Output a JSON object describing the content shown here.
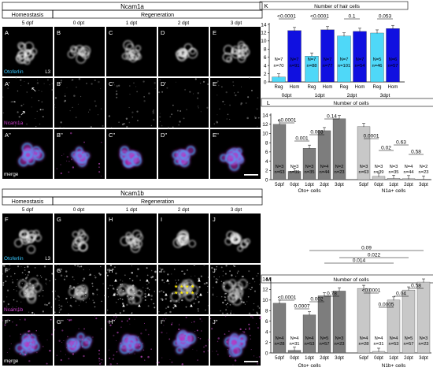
{
  "panel_group_1": {
    "gene": "Ncam1a",
    "homeostasis_label": "Homeostasis",
    "regeneration_label": "Regeneration",
    "column_labels": [
      "5 dpf",
      "0 dpt",
      "1 dpt",
      "2 dpt",
      "3 dpt"
    ],
    "row1_letters": [
      "A",
      "B",
      "C",
      "D",
      "E"
    ],
    "row2_letters": [
      "A'",
      "B'",
      "C'",
      "D'",
      "E'"
    ],
    "row3_letters": [
      "A''",
      "B''",
      "C''",
      "D''",
      "E''"
    ],
    "stain_label_1": "Otoferlin",
    "stain_label_2": "Ncam1a",
    "merge_label": "merge",
    "corner_label": "L3"
  },
  "panel_group_2": {
    "gene": "Ncam1b",
    "homeostasis_label": "Homeostasis",
    "regeneration_label": "Regeneration",
    "column_labels": [
      "5 dpf",
      "0 dpt",
      "1 dpt",
      "2 dpt",
      "3 dpt"
    ],
    "row1_letters": [
      "F",
      "G",
      "H",
      "I",
      "J"
    ],
    "row2_letters": [
      "F'",
      "G'",
      "H'",
      "I'",
      "J'"
    ],
    "row3_letters": [
      "F''",
      "G''",
      "H''",
      "I''",
      "J''"
    ],
    "stain_label_1": "Otoferlin",
    "stain_label_2": "Ncam1b",
    "merge_label": "merge",
    "corner_label": "L3"
  },
  "colors": {
    "light_blue": "#4fd8f8",
    "dark_blue": "#1010e0",
    "dark_gray": "#7d7d7d",
    "light_gray": "#c8c8c8",
    "cyan_label": "#38c8ff",
    "magenta_label": "#d040d0"
  },
  "chart_data": [
    {
      "panel": "K",
      "type": "bar",
      "title": "Number of hair cells",
      "ylim": [
        0,
        14
      ],
      "yticks": [
        0,
        2,
        4,
        6,
        8,
        10,
        12,
        14
      ],
      "categories": [
        "Reg",
        "Hom",
        "Reg",
        "Hom",
        "Reg",
        "Hom",
        "Reg",
        "Hom"
      ],
      "groups": [
        "0dpt",
        "1dpt",
        "2dpt",
        "3dpt"
      ],
      "values": [
        1.2,
        12.5,
        6.3,
        12.7,
        11.2,
        12.3,
        11.9,
        13.0
      ],
      "n_fish": [
        "N=7",
        "N=7",
        "N=7",
        "N=7",
        "N=7",
        "N=7",
        "N=5",
        "N=6"
      ],
      "n_cells": [
        "n=70",
        "n=91",
        "n=88",
        "n=77",
        "n=101",
        "n=54",
        "n=46",
        "n=57"
      ],
      "pvalues": [
        "<0.0001",
        "<0.0001",
        "0.1",
        "0.053"
      ]
    },
    {
      "panel": "L",
      "type": "bar",
      "title": "Number of cells",
      "ylim": [
        0,
        14
      ],
      "yticks": [
        0,
        2,
        4,
        6,
        8,
        10,
        12,
        14
      ],
      "categories": [
        "5dpf",
        "0dpt",
        "1dpt",
        "2dpt",
        "3dpt",
        "5dpf",
        "0dpt",
        "1dpt",
        "2dpt",
        "3dpt"
      ],
      "groups": [
        "Oto+ cells",
        "N1a+ cells"
      ],
      "values": [
        12.0,
        1.8,
        6.8,
        10.6,
        13.2,
        11.5,
        0.7,
        0.3,
        0.2,
        0.1
      ],
      "n_fish": [
        "N=3",
        "N=3",
        "N=3",
        "N=4",
        "N=2",
        "N=3",
        "N=3",
        "N=3",
        "N=4",
        "N=2"
      ],
      "n_cells": [
        "n=63",
        "n=39",
        "n=35",
        "n=44",
        "n=23",
        "n=63",
        "n=39",
        "n=35",
        "n=44",
        "n=23"
      ],
      "pvalues": [
        "<0.0001",
        "0.001",
        "0.003",
        "0.14",
        "0.0001",
        "0.02",
        "0.63",
        "0.58"
      ]
    },
    {
      "panel": "M",
      "type": "bar",
      "title": "Number of cells",
      "ylim": [
        0,
        14
      ],
      "yticks": [
        0,
        2,
        4,
        6,
        8,
        10,
        12,
        14
      ],
      "categories": [
        "5dpf",
        "0dpt",
        "1dpt",
        "2dpt",
        "3dpt",
        "5dpf",
        "0dpt",
        "1dpt",
        "2dpt",
        "3dpt"
      ],
      "groups": [
        "Oto+ cells",
        "N1b+ cells"
      ],
      "values": [
        9.4,
        0.5,
        7.2,
        10.8,
        11.7,
        12.2,
        0.3,
        10.0,
        11.9,
        13.4
      ],
      "n_fish": [
        "N=4",
        "N=4",
        "N=4",
        "N=5",
        "N=3",
        "N=4",
        "N=4",
        "N=4",
        "N=5",
        "N=3"
      ],
      "n_cells": [
        "n=28",
        "n=31",
        "n=53",
        "n=57",
        "n=23",
        "n=28",
        "n=31",
        "n=53",
        "n=57",
        "n=23"
      ],
      "pvalues": [
        "<0.0001",
        "0.0007",
        "0.002",
        "0.78",
        "<0.0001",
        "0.0005",
        "0.04",
        "0.58",
        "0.014",
        "0.022",
        "0.09"
      ]
    }
  ]
}
